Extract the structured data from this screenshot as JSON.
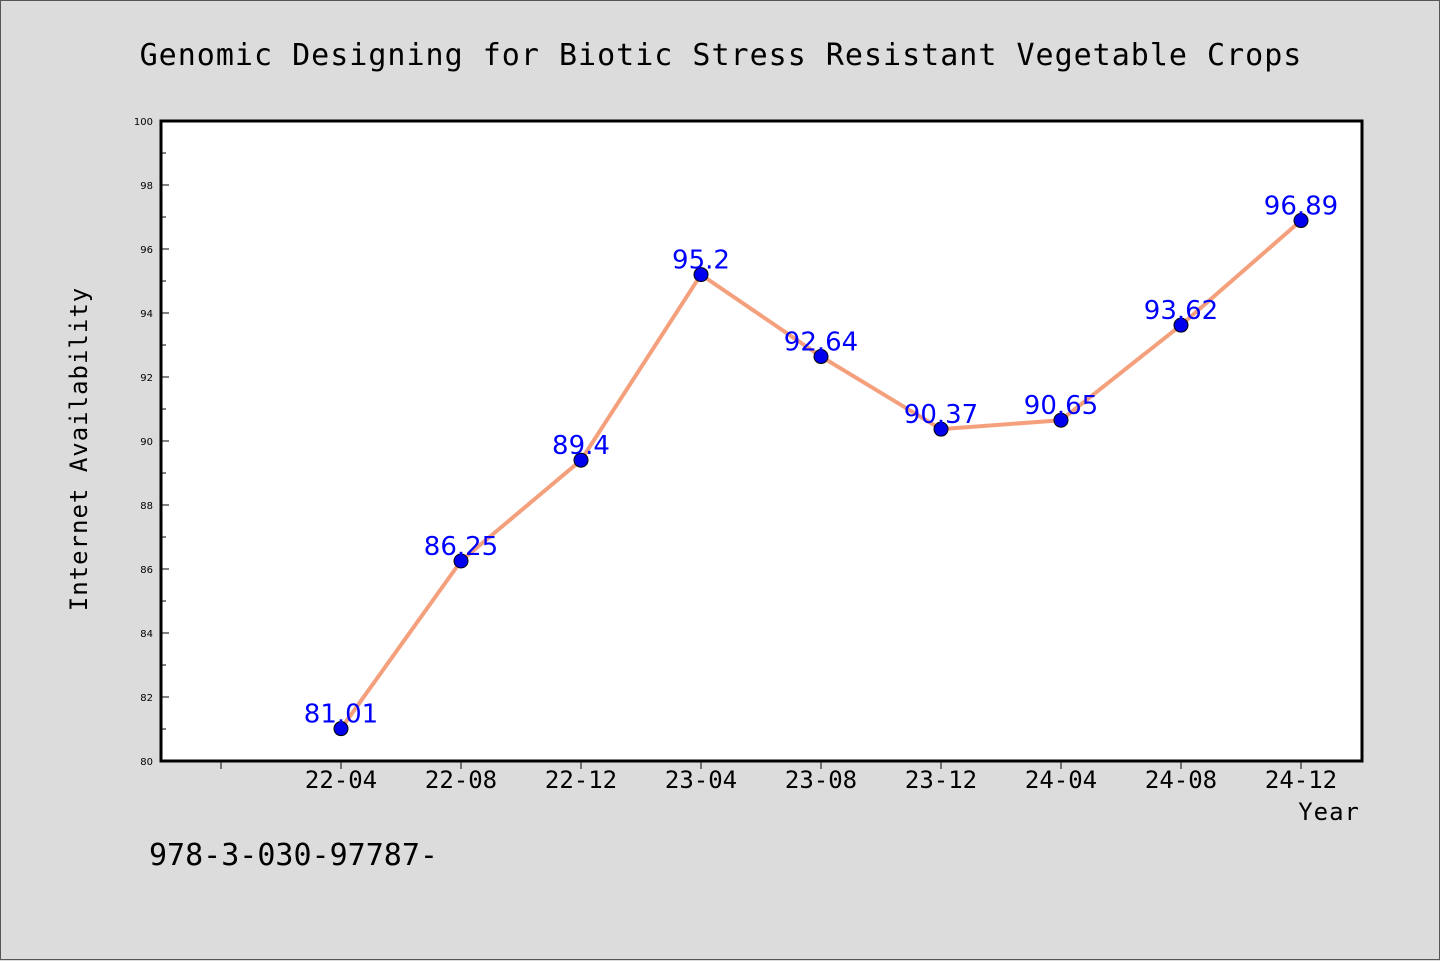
{
  "chart_data": {
    "type": "line",
    "title": "Genomic Designing for Biotic Stress Resistant Vegetable Crops",
    "xlabel": "Year",
    "ylabel": "Internet Availability",
    "categories": [
      "22-04",
      "22-08",
      "22-12",
      "23-04",
      "23-08",
      "23-12",
      "24-04",
      "24-08",
      "24-12"
    ],
    "series": [
      {
        "values": [
          81.01,
          86.25,
          89.4,
          95.2,
          92.64,
          90.37,
          90.65,
          93.62,
          96.89
        ],
        "labels": [
          "81.01",
          "86.25",
          "89.4",
          "95.2",
          "92.64",
          "90.37",
          "90.65",
          "93.62",
          "96.89"
        ]
      }
    ],
    "ylim": [
      80,
      100
    ],
    "yticks": [
      "80",
      "82",
      "84",
      "86",
      "88",
      "90",
      "92",
      "94",
      "96",
      "98",
      "100"
    ],
    "grid": false,
    "line_color": "#f4a07c",
    "marker_color": "#0000ee",
    "label_color": "#0000ff"
  },
  "footer_text": "978-3-030-97787-"
}
